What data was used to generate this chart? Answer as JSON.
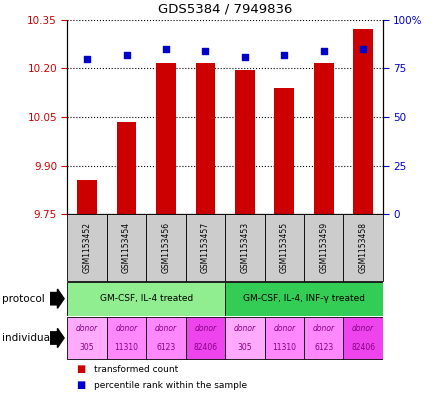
{
  "title": "GDS5384 / 7949836",
  "samples": [
    "GSM1153452",
    "GSM1153454",
    "GSM1153456",
    "GSM1153457",
    "GSM1153453",
    "GSM1153455",
    "GSM1153459",
    "GSM1153458"
  ],
  "transformed_counts": [
    9.855,
    10.035,
    10.215,
    10.215,
    10.195,
    10.14,
    10.215,
    10.32
  ],
  "percentile_ranks": [
    80,
    82,
    85,
    84,
    81,
    82,
    84,
    85
  ],
  "ylim_left": [
    9.75,
    10.35
  ],
  "yticks_left": [
    9.75,
    9.9,
    10.05,
    10.2,
    10.35
  ],
  "yticks_right": [
    0,
    25,
    50,
    75,
    100
  ],
  "ylim_right": [
    0,
    100
  ],
  "bar_color": "#cc0000",
  "dot_color": "#0000cc",
  "protocol_groups": [
    {
      "label": "GM-CSF, IL-4 treated",
      "start": 0,
      "end": 3,
      "color": "#90ee90"
    },
    {
      "label": "GM-CSF, IL-4, INF-γ treated",
      "start": 4,
      "end": 7,
      "color": "#33cc55"
    }
  ],
  "individuals": [
    {
      "label": "donor\n305",
      "color": "#ffaaff"
    },
    {
      "label": "donor\n11310",
      "color": "#ff88ff"
    },
    {
      "label": "donor\n6123",
      "color": "#ff88ff"
    },
    {
      "label": "donor\n82406",
      "color": "#ee44ee"
    },
    {
      "label": "donor\n305",
      "color": "#ffaaff"
    },
    {
      "label": "donor\n11310",
      "color": "#ff88ff"
    },
    {
      "label": "donor\n6123",
      "color": "#ff88ff"
    },
    {
      "label": "donor\n82406",
      "color": "#ee44ee"
    }
  ],
  "sample_bg_color": "#cccccc",
  "left_tick_color": "#cc0000",
  "right_tick_color": "#0000cc",
  "bar_width": 0.5,
  "fig_width": 4.35,
  "fig_height": 3.93,
  "fig_dpi": 100
}
